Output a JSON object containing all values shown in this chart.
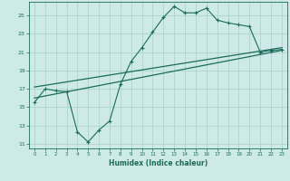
{
  "xlabel": "Humidex (Indice chaleur)",
  "bg_color": "#ceeae8",
  "grid_color": "#add4d0",
  "line_color": "#1a6b5a",
  "xlim": [
    -0.5,
    23.5
  ],
  "ylim": [
    10.5,
    26.5
  ],
  "yticks": [
    11,
    13,
    15,
    17,
    19,
    21,
    23,
    25
  ],
  "xticks": [
    0,
    1,
    2,
    3,
    4,
    5,
    6,
    7,
    8,
    9,
    10,
    11,
    12,
    13,
    14,
    15,
    16,
    17,
    18,
    19,
    20,
    21,
    22,
    23
  ],
  "line1_x": [
    0,
    1,
    2,
    3,
    4,
    5,
    6,
    7,
    8,
    9,
    10,
    11,
    12,
    13,
    14,
    15,
    16,
    17,
    18,
    19,
    20,
    21,
    22,
    23
  ],
  "line1_y": [
    15.5,
    17.0,
    16.8,
    16.7,
    12.3,
    11.2,
    12.5,
    13.5,
    17.5,
    20.0,
    21.5,
    23.2,
    24.8,
    26.0,
    25.3,
    25.3,
    25.8,
    24.5,
    24.2,
    24.0,
    23.8,
    21.0,
    21.2,
    21.3
  ],
  "line2_x": [
    0,
    23
  ],
  "line2_y": [
    16.0,
    21.2
  ],
  "line3_x": [
    0,
    23
  ],
  "line3_y": [
    17.2,
    21.5
  ]
}
